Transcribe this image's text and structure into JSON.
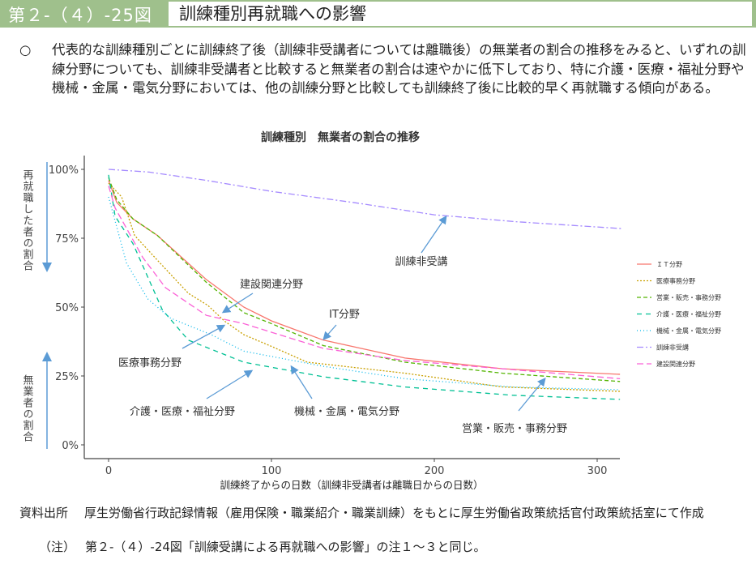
{
  "header": {
    "figure_number": "第２-（４）-25図",
    "title": "訓練種別再就職への影響"
  },
  "summary": {
    "bullet": "○",
    "text": "代表的な訓練種別ごとに訓練終了後（訓練非受講者については離職後）の無業者の割合の推移をみると、いずれの訓練分野についても、訓練非受講者と比較すると無業者の割合は速やかに低下しており、特に介護・医療・福祉分野や機械・金属・電気分野においては、他の訓練分野と比較しても訓練終了後に比較的早く再就職する傾向がある。"
  },
  "chart_data": {
    "type": "line",
    "title": "訓練種別　無業者の割合の推移",
    "xlabel": "訓練終了からの日数（訓練非受講者は離職日からの日数）",
    "ylabel_top": "再就職した者の割合",
    "ylabel_bottom": "無業者の割合",
    "xlim": [
      -15,
      315
    ],
    "ylim": [
      -5,
      105
    ],
    "xticks": [
      0,
      100,
      200,
      300
    ],
    "yticks": [
      {
        "v": 0,
        "label": "0%"
      },
      {
        "v": 25,
        "label": "25%"
      },
      {
        "v": 50,
        "label": "50%"
      },
      {
        "v": 75,
        "label": "75%"
      },
      {
        "v": 100,
        "label": "100%"
      }
    ],
    "grid": false,
    "legend_position": "right",
    "series": [
      {
        "name": "ＩＴ分野",
        "color": "#f8766d",
        "dash": "",
        "x": [
          0,
          5,
          15,
          30,
          60,
          83,
          100,
          132,
          182,
          242,
          314
        ],
        "y": [
          96,
          88,
          82,
          76,
          60,
          50,
          45,
          38,
          31.5,
          27.6,
          25.6
        ]
      },
      {
        "name": "医療事務分野",
        "color": "#c9a000",
        "dash": "2,2",
        "x": [
          0,
          8,
          16,
          30,
          49,
          61,
          71,
          83,
          99,
          122,
          182,
          242,
          314
        ],
        "y": [
          95,
          90,
          76,
          67,
          55,
          50.6,
          45,
          40,
          36,
          30,
          26,
          21,
          19.4
        ]
      },
      {
        "name": "営業・販売・事務分野",
        "color": "#53b400",
        "dash": "5,3",
        "x": [
          0,
          5,
          15,
          30,
          60,
          83,
          100,
          132,
          182,
          242,
          314
        ],
        "y": [
          97,
          89,
          82,
          76,
          59,
          48,
          44,
          36,
          30,
          26,
          23
        ]
      },
      {
        "name": "介護・医療・福祉分野",
        "color": "#00c094",
        "dash": "6,5",
        "x": [
          0,
          4,
          15,
          24,
          33,
          49,
          83,
          132,
          182,
          248,
          314
        ],
        "y": [
          98,
          83,
          73,
          61,
          49,
          38,
          30,
          24.7,
          21,
          18,
          16.5
        ]
      },
      {
        "name": "機械・金属・電気分野",
        "color": "#00b6eb",
        "dash": "1,3",
        "x": [
          0,
          11,
          24,
          38,
          63,
          83,
          132,
          182,
          248,
          314
        ],
        "y": [
          90,
          66,
          53,
          46,
          40,
          34,
          28.5,
          24,
          21,
          20
        ]
      },
      {
        "name": "訓練非受講",
        "color": "#a58aff",
        "dash": "8,3,2,3",
        "x": [
          0,
          25,
          60,
          100,
          150,
          200,
          250,
          315
        ],
        "y": [
          100,
          99,
          96,
          92,
          88,
          83.5,
          81,
          78.5
        ]
      },
      {
        "name": "建設関連分野",
        "color": "#fb61d7",
        "dash": "8,4",
        "x": [
          0,
          4,
          21,
          35,
          60,
          83,
          132,
          182,
          242,
          314
        ],
        "y": [
          94,
          86,
          68,
          57,
          47,
          44,
          35,
          30.6,
          27.6,
          24
        ]
      }
    ],
    "annotations": [
      {
        "text": "訓練非受講",
        "series": "訓練非受講"
      },
      {
        "text": "建設関連分野",
        "series": "建設関連分野"
      },
      {
        "text": "IT分野",
        "series": "ＩＴ分野"
      },
      {
        "text": "医療事務分野",
        "series": "医療事務分野"
      },
      {
        "text": "介護・医療・福祉分野",
        "series": "介護・医療・福祉分野"
      },
      {
        "text": "機械・金属・電気分野",
        "series": "機械・金属・電気分野"
      },
      {
        "text": "営業・販売・事務分野",
        "series": "営業・販売・事務分野"
      }
    ],
    "arrow_color": "#5b9bd5"
  },
  "source": {
    "label": "資料出所",
    "text": "厚生労働省行政記録情報（雇用保険・職業紹介・職業訓練）をもとに厚生労働省政策統括官付政策統括室にて作成"
  },
  "note": {
    "label": "（注）",
    "text": "第２-（４）-24図「訓練受講による再就職への影響」の注１～３と同じ。"
  }
}
